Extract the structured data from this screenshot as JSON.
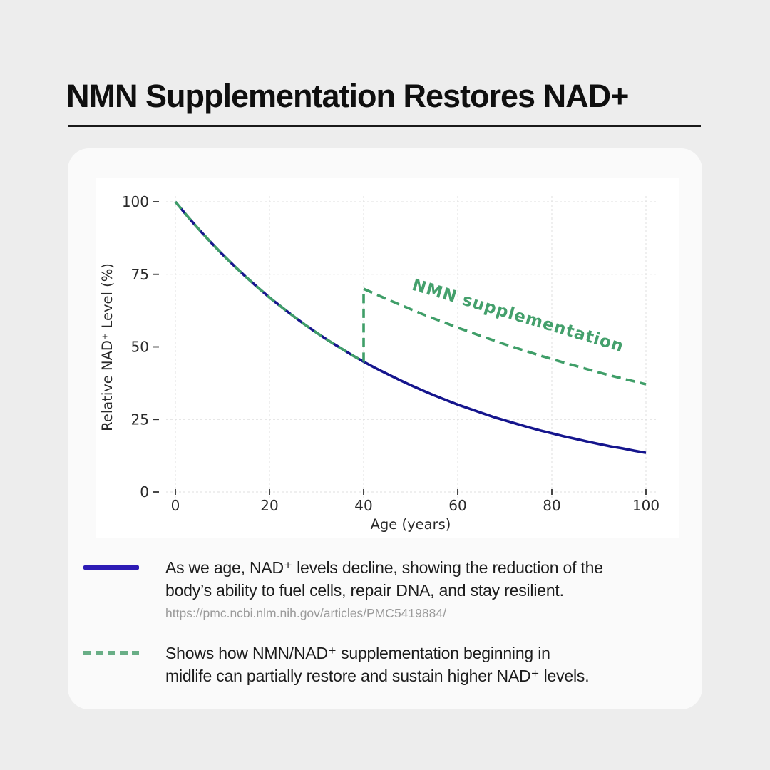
{
  "page": {
    "background": "#ededed",
    "title": "NMN Supplementation Restores NAD+"
  },
  "chart_data": {
    "type": "line",
    "title": "",
    "xlabel": "Age (years)",
    "ylabel": "Relative NAD⁺ Level (%)",
    "xlim": [
      0,
      100
    ],
    "ylim": [
      0,
      100
    ],
    "x_ticks": [
      0,
      20,
      40,
      60,
      80,
      100
    ],
    "y_ticks": [
      0,
      25,
      50,
      75,
      100
    ],
    "grid": true,
    "grid_style": "dashed",
    "annotation": {
      "text": "NMN supplementation",
      "age": 72.5,
      "level": 59,
      "rotation_deg": 16.5,
      "color": "#44a06c"
    },
    "series": [
      {
        "name": "natural-decline",
        "color": "#15158d",
        "style": "solid",
        "points": [
          [
            0,
            100
          ],
          [
            2.5,
            95.1
          ],
          [
            5,
            90.5
          ],
          [
            7.5,
            86.1
          ],
          [
            10,
            81.9
          ],
          [
            12.5,
            77.9
          ],
          [
            15,
            74.1
          ],
          [
            17.5,
            70.5
          ],
          [
            20,
            67
          ],
          [
            22.5,
            63.8
          ],
          [
            25,
            60.7
          ],
          [
            27.5,
            57.7
          ],
          [
            30,
            54.9
          ],
          [
            32.5,
            52.2
          ],
          [
            35,
            49.7
          ],
          [
            37.5,
            47.2
          ],
          [
            40,
            44.9
          ],
          [
            42.5,
            42.7
          ],
          [
            45,
            40.7
          ],
          [
            47.5,
            38.7
          ],
          [
            50,
            36.8
          ],
          [
            52.5,
            35
          ],
          [
            55,
            33.3
          ],
          [
            57.5,
            31.7
          ],
          [
            60,
            30.1
          ],
          [
            62.5,
            28.7
          ],
          [
            65,
            27.3
          ],
          [
            67.5,
            25.9
          ],
          [
            70,
            24.7
          ],
          [
            72.5,
            23.5
          ],
          [
            75,
            22.3
          ],
          [
            77.5,
            21.2
          ],
          [
            80,
            20.2
          ],
          [
            82.5,
            19.2
          ],
          [
            85,
            18.3
          ],
          [
            87.5,
            17.4
          ],
          [
            90,
            16.5
          ],
          [
            92.5,
            15.7
          ],
          [
            95,
            15
          ],
          [
            97.5,
            14.2
          ],
          [
            100,
            13.5
          ]
        ]
      },
      {
        "name": "nmn-supplementation",
        "color": "#3f9e68",
        "style": "dashed",
        "points": [
          [
            0,
            100
          ],
          [
            2.5,
            95.1
          ],
          [
            5,
            90.5
          ],
          [
            7.5,
            86.1
          ],
          [
            10,
            81.9
          ],
          [
            12.5,
            77.9
          ],
          [
            15,
            74.1
          ],
          [
            17.5,
            70.5
          ],
          [
            20,
            67
          ],
          [
            22.5,
            63.8
          ],
          [
            25,
            60.7
          ],
          [
            27.5,
            57.7
          ],
          [
            30,
            54.9
          ],
          [
            32.5,
            52.2
          ],
          [
            35,
            49.7
          ],
          [
            37.5,
            47.2
          ],
          [
            40,
            44.9
          ],
          [
            40,
            70
          ],
          [
            42.5,
            68.2
          ],
          [
            45,
            66.4
          ],
          [
            47.5,
            64.7
          ],
          [
            50,
            63
          ],
          [
            52.5,
            61.3
          ],
          [
            55,
            59.7
          ],
          [
            57.5,
            58.2
          ],
          [
            60,
            56.6
          ],
          [
            62.5,
            55.2
          ],
          [
            65,
            53.7
          ],
          [
            67.5,
            52.3
          ],
          [
            70,
            50.9
          ],
          [
            72.5,
            49.6
          ],
          [
            75,
            48.3
          ],
          [
            77.5,
            47
          ],
          [
            80,
            45.8
          ],
          [
            82.5,
            44.6
          ],
          [
            85,
            43.5
          ],
          [
            87.5,
            42.3
          ],
          [
            90,
            41.2
          ],
          [
            92.5,
            40.1
          ],
          [
            95,
            39.1
          ],
          [
            97.5,
            38.1
          ],
          [
            100,
            37.1
          ]
        ]
      }
    ]
  },
  "legend": {
    "entries": [
      {
        "marker": "solid-line",
        "marker_color": "#2d1bb5",
        "lines": [
          "As we age, NAD⁺ levels decline, showing the reduction of the",
          "body’s ability to fuel cells, repair DNA, and stay resilient."
        ],
        "source_url": "https://pmc.ncbi.nlm.nih.gov/articles/PMC5419884/"
      },
      {
        "marker": "dashed-line",
        "marker_color": "#69ae86",
        "lines": [
          "Shows how NMN/NAD⁺ supplementation beginning in",
          "midlife can partially restore and sustain higher NAD⁺ levels."
        ]
      }
    ]
  }
}
